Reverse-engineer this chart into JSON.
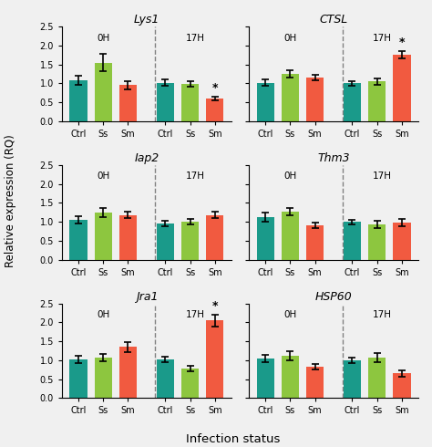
{
  "subplots": [
    {
      "title": "Lys1",
      "title_style": "italic",
      "groups": [
        "0H",
        "17H"
      ],
      "bars": [
        {
          "label": "Ctrl",
          "group": "0H",
          "value": 1.08,
          "error": 0.13,
          "color": "#1a9a8a"
        },
        {
          "label": "Ss",
          "group": "0H",
          "value": 1.55,
          "error": 0.23,
          "color": "#8dc63f"
        },
        {
          "label": "Sm",
          "group": "0H",
          "value": 0.95,
          "error": 0.1,
          "color": "#f15a40"
        },
        {
          "label": "Ctrl",
          "group": "17H",
          "value": 1.02,
          "error": 0.08,
          "color": "#1a9a8a"
        },
        {
          "label": "Ss",
          "group": "17H",
          "value": 0.98,
          "error": 0.08,
          "color": "#8dc63f"
        },
        {
          "label": "Sm",
          "group": "17H",
          "value": 0.6,
          "error": 0.05,
          "color": "#f15a40",
          "star": true
        }
      ]
    },
    {
      "title": "CTSL",
      "title_style": "italic",
      "groups": [
        "0H",
        "17H"
      ],
      "bars": [
        {
          "label": "Ctrl",
          "group": "0H",
          "value": 1.02,
          "error": 0.08,
          "color": "#1a9a8a"
        },
        {
          "label": "Ss",
          "group": "0H",
          "value": 1.25,
          "error": 0.1,
          "color": "#8dc63f"
        },
        {
          "label": "Sm",
          "group": "0H",
          "value": 1.15,
          "error": 0.07,
          "color": "#f15a40"
        },
        {
          "label": "Ctrl",
          "group": "17H",
          "value": 1.0,
          "error": 0.06,
          "color": "#1a9a8a"
        },
        {
          "label": "Ss",
          "group": "17H",
          "value": 1.05,
          "error": 0.08,
          "color": "#8dc63f"
        },
        {
          "label": "Sm",
          "group": "17H",
          "value": 1.75,
          "error": 0.1,
          "color": "#f15a40",
          "star": true
        }
      ]
    },
    {
      "title": "Iap2",
      "title_style": "italic",
      "groups": [
        "0H",
        "17H"
      ],
      "bars": [
        {
          "label": "Ctrl",
          "group": "0H",
          "value": 1.05,
          "error": 0.09,
          "color": "#1a9a8a"
        },
        {
          "label": "Ss",
          "group": "0H",
          "value": 1.25,
          "error": 0.12,
          "color": "#8dc63f"
        },
        {
          "label": "Sm",
          "group": "0H",
          "value": 1.18,
          "error": 0.08,
          "color": "#f15a40"
        },
        {
          "label": "Ctrl",
          "group": "17H",
          "value": 0.95,
          "error": 0.07,
          "color": "#1a9a8a"
        },
        {
          "label": "Ss",
          "group": "17H",
          "value": 1.0,
          "error": 0.07,
          "color": "#8dc63f"
        },
        {
          "label": "Sm",
          "group": "17H",
          "value": 1.18,
          "error": 0.09,
          "color": "#f15a40"
        }
      ]
    },
    {
      "title": "Thm3",
      "title_style": "italic",
      "groups": [
        "0H",
        "17H"
      ],
      "bars": [
        {
          "label": "Ctrl",
          "group": "0H",
          "value": 1.12,
          "error": 0.12,
          "color": "#1a9a8a"
        },
        {
          "label": "Ss",
          "group": "0H",
          "value": 1.27,
          "error": 0.1,
          "color": "#8dc63f"
        },
        {
          "label": "Sm",
          "group": "0H",
          "value": 0.9,
          "error": 0.07,
          "color": "#f15a40"
        },
        {
          "label": "Ctrl",
          "group": "17H",
          "value": 1.0,
          "error": 0.06,
          "color": "#1a9a8a"
        },
        {
          "label": "Ss",
          "group": "17H",
          "value": 0.93,
          "error": 0.09,
          "color": "#8dc63f"
        },
        {
          "label": "Sm",
          "group": "17H",
          "value": 0.98,
          "error": 0.09,
          "color": "#f15a40"
        }
      ]
    },
    {
      "title": "Jra1",
      "title_style": "italic",
      "groups": [
        "0H",
        "17H"
      ],
      "bars": [
        {
          "label": "Ctrl",
          "group": "0H",
          "value": 1.02,
          "error": 0.1,
          "color": "#1a9a8a"
        },
        {
          "label": "Ss",
          "group": "0H",
          "value": 1.07,
          "error": 0.1,
          "color": "#8dc63f"
        },
        {
          "label": "Sm",
          "group": "0H",
          "value": 1.35,
          "error": 0.13,
          "color": "#f15a40"
        },
        {
          "label": "Ctrl",
          "group": "17H",
          "value": 1.02,
          "error": 0.08,
          "color": "#1a9a8a"
        },
        {
          "label": "Ss",
          "group": "17H",
          "value": 0.78,
          "error": 0.07,
          "color": "#8dc63f"
        },
        {
          "label": "Sm",
          "group": "17H",
          "value": 2.05,
          "error": 0.15,
          "color": "#f15a40",
          "star": true
        }
      ]
    },
    {
      "title": "HSP60",
      "title_style": "italic",
      "groups": [
        "0H",
        "17H"
      ],
      "bars": [
        {
          "label": "Ctrl",
          "group": "0H",
          "value": 1.05,
          "error": 0.09,
          "color": "#1a9a8a"
        },
        {
          "label": "Ss",
          "group": "0H",
          "value": 1.12,
          "error": 0.12,
          "color": "#8dc63f"
        },
        {
          "label": "Sm",
          "group": "0H",
          "value": 0.82,
          "error": 0.07,
          "color": "#f15a40"
        },
        {
          "label": "Ctrl",
          "group": "17H",
          "value": 1.0,
          "error": 0.07,
          "color": "#1a9a8a"
        },
        {
          "label": "Ss",
          "group": "17H",
          "value": 1.07,
          "error": 0.12,
          "color": "#8dc63f"
        },
        {
          "label": "Sm",
          "group": "17H",
          "value": 0.65,
          "error": 0.08,
          "color": "#f15a40"
        }
      ]
    }
  ],
  "ylim": [
    0,
    2.5
  ],
  "yticks": [
    0.0,
    0.5,
    1.0,
    1.5,
    2.0,
    2.5
  ],
  "ylabel": "Relative expression (RQ)",
  "xlabel": "Infection status",
  "bar_width": 0.7,
  "tick_labels": [
    "Ctrl",
    "Ss",
    "Sm",
    "Ctrl",
    "Ss",
    "Sm"
  ],
  "bg_color": "#f0f0f0"
}
